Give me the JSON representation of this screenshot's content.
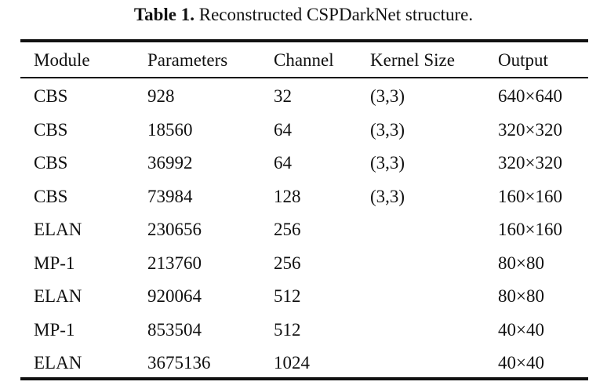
{
  "caption": {
    "label": "Table 1.",
    "text": " Reconstructed CSPDarkNet structure."
  },
  "table": {
    "headers": [
      "Module",
      "Parameters",
      "Channel",
      "Kernel Size",
      "Output"
    ],
    "rows": [
      [
        "CBS",
        "928",
        "32",
        "(3,3)",
        "640×640"
      ],
      [
        "CBS",
        "18560",
        "64",
        "(3,3)",
        "320×320"
      ],
      [
        "CBS",
        "36992",
        "64",
        "(3,3)",
        "320×320"
      ],
      [
        "CBS",
        "73984",
        "128",
        "(3,3)",
        "160×160"
      ],
      [
        "ELAN",
        "230656",
        "256",
        "",
        "160×160"
      ],
      [
        "MP-1",
        "213760",
        "256",
        "",
        "80×80"
      ],
      [
        "ELAN",
        "920064",
        "512",
        "",
        "80×80"
      ],
      [
        "MP-1",
        "853504",
        "512",
        "",
        "40×40"
      ],
      [
        "ELAN",
        "3675136",
        "1024",
        "",
        "40×40"
      ]
    ]
  }
}
